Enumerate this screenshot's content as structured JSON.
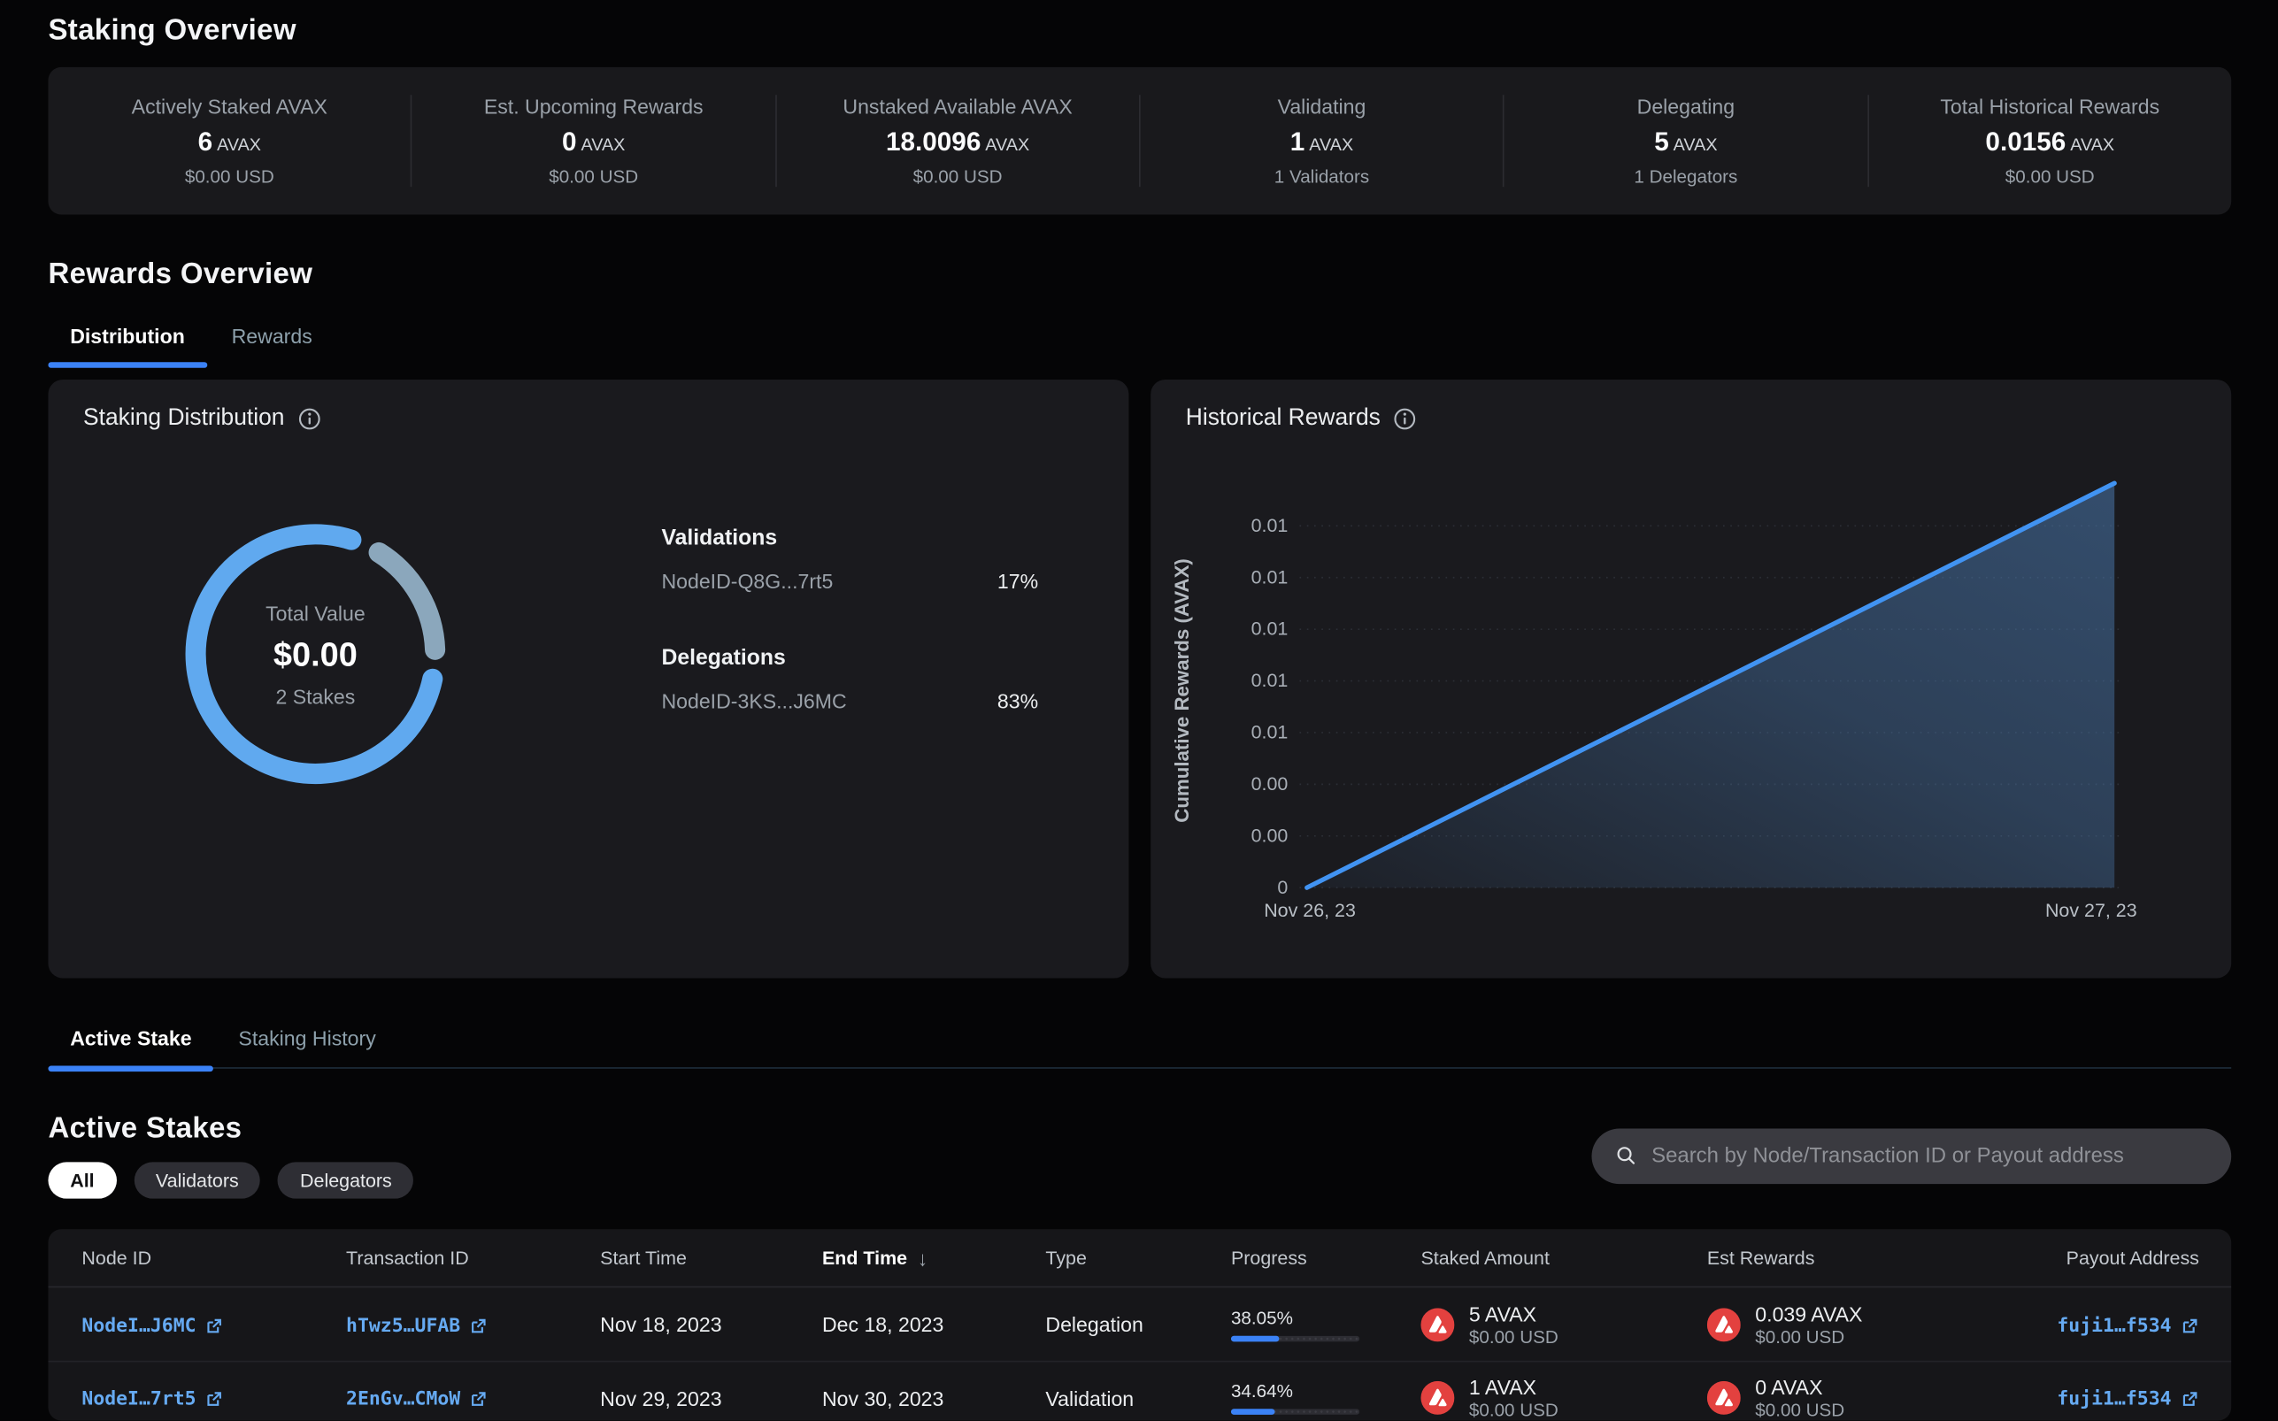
{
  "colors": {
    "accent": "#3b82f6",
    "link_blue": "#66aaf2",
    "donut_primary": "#60a9ef",
    "donut_secondary": "#8ba7bc",
    "avax_red": "#e3413f",
    "card_bg": "#1a1a1e",
    "page_bg": "#050506"
  },
  "staking_overview": {
    "title": "Staking Overview",
    "stats": [
      {
        "label": "Actively Staked AVAX",
        "value": "6",
        "unit": "AVAX",
        "sub": "$0.00 USD"
      },
      {
        "label": "Est. Upcoming Rewards",
        "value": "0",
        "unit": "AVAX",
        "sub": "$0.00 USD"
      },
      {
        "label": "Unstaked Available AVAX",
        "value": "18.0096",
        "unit": "AVAX",
        "sub": "$0.00 USD"
      },
      {
        "label": "Validating",
        "value": "1",
        "unit": "AVAX",
        "sub": "1 Validators"
      },
      {
        "label": "Delegating",
        "value": "5",
        "unit": "AVAX",
        "sub": "1 Delegators"
      },
      {
        "label": "Total Historical Rewards",
        "value": "0.0156",
        "unit": "AVAX",
        "sub": "$0.00 USD"
      }
    ]
  },
  "rewards_overview": {
    "title": "Rewards Overview",
    "tabs": [
      {
        "label": "Distribution"
      },
      {
        "label": "Rewards"
      }
    ],
    "distribution_card": {
      "title": "Staking Distribution",
      "donut_center": {
        "label": "Total Value",
        "value": "$0.00",
        "sub": "2 Stakes"
      },
      "legend": {
        "validations_title": "Validations",
        "validations": [
          {
            "name": "NodeID-Q8G...7rt5",
            "pct": "17%"
          }
        ],
        "delegations_title": "Delegations",
        "delegations": [
          {
            "name": "NodeID-3KS...J6MC",
            "pct": "83%"
          }
        ]
      }
    },
    "historical_card": {
      "title": "Historical Rewards",
      "y_axis_label": "Cumulative Rewards (AVAX)",
      "y_ticks": [
        "0.01",
        "0.01",
        "0.01",
        "0.01",
        "0.01",
        "0.00",
        "0.00",
        "0"
      ],
      "x_labels": [
        "Nov 26, 23",
        "Nov 27, 23"
      ]
    }
  },
  "stakes_section": {
    "tabs": [
      {
        "label": "Active Stake"
      },
      {
        "label": "Staking History"
      }
    ],
    "heading": "Active Stakes",
    "filters": [
      {
        "label": "All"
      },
      {
        "label": "Validators"
      },
      {
        "label": "Delegators"
      }
    ],
    "search_placeholder": "Search by Node/Transaction ID or Payout address",
    "table": {
      "columns": [
        "Node ID",
        "Transaction ID",
        "Start Time",
        "End Time",
        "Type",
        "Progress",
        "Staked Amount",
        "Est Rewards",
        "Payout Address"
      ],
      "sorted_column": "End Time",
      "rows": [
        {
          "node_id": "NodeI…J6MC",
          "tx_id": "hTwz5…UFAB",
          "start": "Nov 18, 2023",
          "end": "Dec 18, 2023",
          "type": "Delegation",
          "progress": "38.05%",
          "staked_amount": "5 AVAX",
          "staked_usd": "$0.00 USD",
          "reward_amount": "0.039 AVAX",
          "reward_usd": "$0.00 USD",
          "payout": "fuji1…f534"
        },
        {
          "node_id": "NodeI…7rt5",
          "tx_id": "2EnGv…CMoW",
          "start": "Nov 29, 2023",
          "end": "Nov 30, 2023",
          "type": "Validation",
          "progress": "34.64%",
          "staked_amount": "1 AVAX",
          "staked_usd": "$0.00 USD",
          "reward_amount": "0 AVAX",
          "reward_usd": "$0.00 USD",
          "payout": "fuji1…f534"
        }
      ]
    }
  },
  "chart_data": [
    {
      "type": "pie",
      "title": "Staking Distribution",
      "categories": [
        "Validations NodeID-Q8G...7rt5",
        "Delegations NodeID-3KS...J6MC"
      ],
      "values": [
        17,
        83
      ],
      "total_value": "$0.00",
      "total_stakes": 2,
      "legend_position": "right"
    },
    {
      "type": "line",
      "title": "Historical Rewards",
      "xlabel": "",
      "ylabel": "Cumulative Rewards (AVAX)",
      "x": [
        "Nov 26, 23",
        "Nov 27, 23"
      ],
      "series": [
        {
          "name": "Cumulative Rewards (AVAX)",
          "values": [
            0,
            0.0156
          ]
        }
      ],
      "ylim": [
        0,
        0.016
      ],
      "y_tick_values": [
        0,
        0.002,
        0.004,
        0.006,
        0.008,
        0.01,
        0.012,
        0.014
      ],
      "grid": "dotted-horizontal"
    }
  ]
}
